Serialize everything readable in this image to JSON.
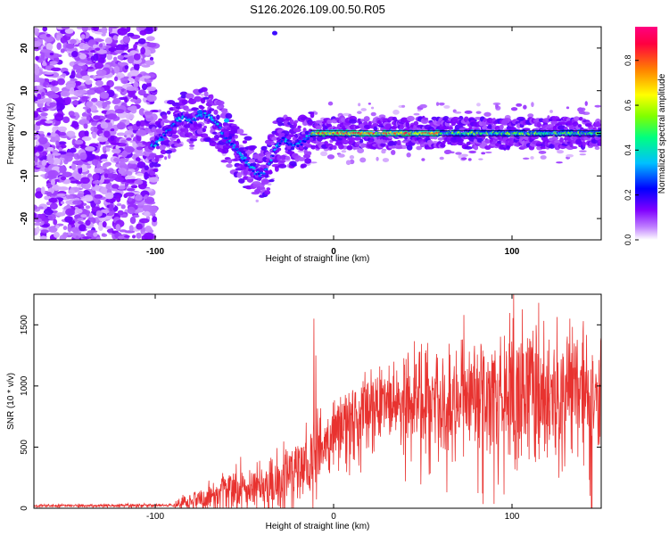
{
  "figure_title": "S126.2026.109.00.50.R05",
  "chart_data": [
    {
      "type": "heatmap",
      "title": "S126.2026.109.00.50.R05",
      "xlabel": "Height of straight line (km)",
      "ylabel": "Frequency (Hz)",
      "xlim": [
        -168,
        150
      ],
      "ylim": [
        -25,
        25
      ],
      "xticks": [
        -100,
        0,
        100
      ],
      "yticks": [
        -20,
        -10,
        0,
        10,
        20
      ],
      "colorbar": {
        "label": "Normalized spectral amplitude",
        "range": [
          0,
          0.95
        ],
        "ticks": [
          0.0,
          0.2,
          0.4,
          0.6,
          0.8
        ],
        "colormap": [
          "#ffffff",
          "#c080ff",
          "#8000ff",
          "#0000ff",
          "#00c0ff",
          "#00ff80",
          "#80ff00",
          "#ffff00",
          "#ff8000",
          "#ff0040",
          "#ff0080"
        ]
      },
      "ridge": [
        {
          "x": -100,
          "f": -3.0
        },
        {
          "x": -96,
          "f": -1.0
        },
        {
          "x": -92,
          "f": 1.0
        },
        {
          "x": -88,
          "f": 3.0
        },
        {
          "x": -84,
          "f": 3.5
        },
        {
          "x": -80,
          "f": 3.0
        },
        {
          "x": -76,
          "f": 4.0
        },
        {
          "x": -72,
          "f": 4.5
        },
        {
          "x": -68,
          "f": 3.5
        },
        {
          "x": -64,
          "f": 1.5
        },
        {
          "x": -60,
          "f": -1.5
        },
        {
          "x": -56,
          "f": -3.0
        },
        {
          "x": -52,
          "f": -5.0
        },
        {
          "x": -48,
          "f": -7.0
        },
        {
          "x": -44,
          "f": -9.0
        },
        {
          "x": -40,
          "f": -10.0
        },
        {
          "x": -36,
          "f": -7.0
        },
        {
          "x": -32,
          "f": -3.0
        },
        {
          "x": -28,
          "f": -1.5
        },
        {
          "x": -24,
          "f": -2.5
        },
        {
          "x": -20,
          "f": -3.0
        },
        {
          "x": -16,
          "f": -1.5
        },
        {
          "x": -12,
          "f": 0.0
        },
        {
          "x": 0,
          "f": 0.0
        },
        {
          "x": 40,
          "f": 0.0
        },
        {
          "x": 80,
          "f": 0.0
        },
        {
          "x": 120,
          "f": 0.0
        },
        {
          "x": 150,
          "f": 0.0
        }
      ],
      "peak_amplitude_range": {
        "x_start": -13,
        "x_end": 60,
        "value": 0.9
      }
    },
    {
      "type": "line",
      "xlabel": "Height of straight line (km)",
      "ylabel": "SNR (10 * v/v)",
      "xlim": [
        -168,
        150
      ],
      "ylim": [
        0,
        1750
      ],
      "xticks": [
        -100,
        0,
        100
      ],
      "yticks": [
        0,
        500,
        1000,
        1500
      ],
      "color": "#e8322f",
      "envelope": [
        {
          "x": -168,
          "baseline": 20,
          "spread": 15
        },
        {
          "x": -90,
          "baseline": 25,
          "spread": 20
        },
        {
          "x": -80,
          "baseline": 60,
          "spread": 120
        },
        {
          "x": -70,
          "baseline": 80,
          "spread": 160
        },
        {
          "x": -60,
          "baseline": 150,
          "spread": 250
        },
        {
          "x": -50,
          "baseline": 150,
          "spread": 220
        },
        {
          "x": -40,
          "baseline": 180,
          "spread": 260
        },
        {
          "x": -30,
          "baseline": 250,
          "spread": 350
        },
        {
          "x": -20,
          "baseline": 300,
          "spread": 380
        },
        {
          "x": -10,
          "baseline": 450,
          "spread": 400
        },
        {
          "x": 0,
          "baseline": 600,
          "spread": 400
        },
        {
          "x": 10,
          "baseline": 750,
          "spread": 400
        },
        {
          "x": 20,
          "baseline": 850,
          "spread": 400
        },
        {
          "x": 40,
          "baseline": 900,
          "spread": 500
        },
        {
          "x": 60,
          "baseline": 920,
          "spread": 600
        },
        {
          "x": 80,
          "baseline": 950,
          "spread": 650
        },
        {
          "x": 100,
          "baseline": 950,
          "spread": 700
        },
        {
          "x": 120,
          "baseline": 900,
          "spread": 750
        },
        {
          "x": 150,
          "baseline": 900,
          "spread": 750
        }
      ],
      "spikes": [
        {
          "x": -11,
          "y": 1550
        },
        {
          "x": -10,
          "y": 1250
        },
        {
          "x": -52,
          "y": 420
        },
        {
          "x": 101,
          "y": 1760
        },
        {
          "x": 115,
          "y": 1680
        },
        {
          "x": 73,
          "y": 1580
        },
        {
          "x": 140,
          "y": 1530
        }
      ]
    }
  ]
}
